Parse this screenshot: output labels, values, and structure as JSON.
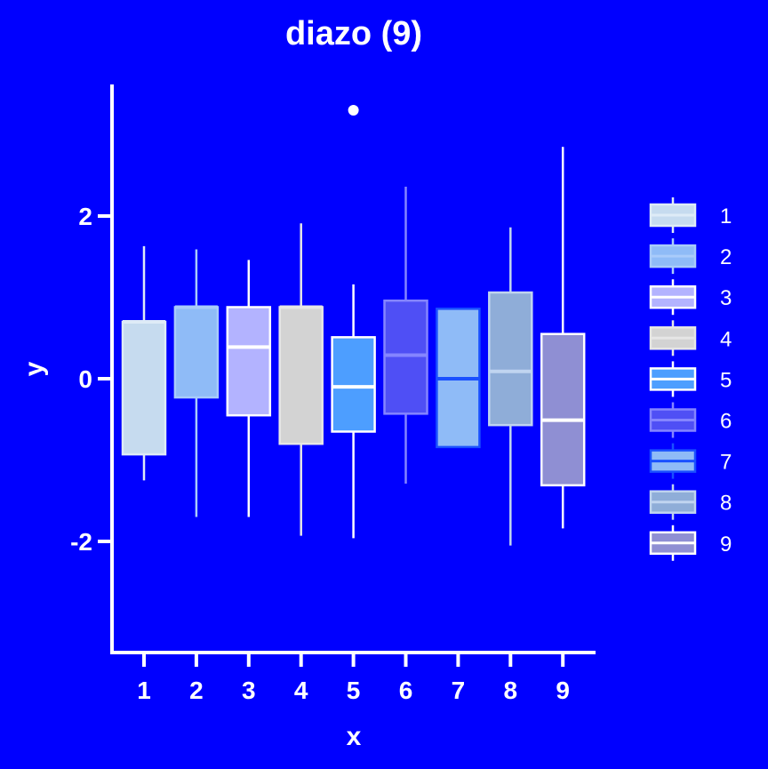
{
  "chart_data": {
    "type": "box",
    "title": "diazo (9)",
    "xlabel": "x",
    "ylabel": "y",
    "ylim": [
      -3.35,
      3.6
    ],
    "yticks": [
      -2,
      0,
      2
    ],
    "ytick_labels": [
      "-2",
      "0",
      "2"
    ],
    "categories": [
      "1",
      "2",
      "3",
      "4",
      "5",
      "6",
      "7",
      "8",
      "9"
    ],
    "legend_position": "right",
    "legend_labels": [
      "1",
      "2",
      "3",
      "4",
      "5",
      "6",
      "7",
      "8",
      "9"
    ],
    "series": [
      {
        "category": "1",
        "whisker_low": -1.25,
        "q1": -0.93,
        "median": 0.7,
        "q3": 0.7,
        "whisker_high": 1.63,
        "fill": "#c6dbef",
        "line": "#deebf7",
        "outliers": []
      },
      {
        "category": "2",
        "whisker_low": -1.7,
        "q1": -0.23,
        "median": 0.88,
        "q3": 0.88,
        "whisker_high": 1.59,
        "fill": "#8fbbf7",
        "line": "#a9cbfa",
        "outliers": []
      },
      {
        "category": "3",
        "whisker_low": -1.7,
        "q1": -0.45,
        "median": 0.39,
        "q3": 0.88,
        "whisker_high": 1.46,
        "fill": "#b3b3ff",
        "line": "#ffffff",
        "outliers": []
      },
      {
        "category": "4",
        "whisker_low": -1.93,
        "q1": -0.8,
        "median": 0.88,
        "q3": 0.88,
        "whisker_high": 1.91,
        "fill": "#d3d3d3",
        "line": "#e6e6e6",
        "outliers": []
      },
      {
        "category": "5",
        "whisker_low": -1.96,
        "q1": -0.65,
        "median": -0.1,
        "q3": 0.51,
        "whisker_high": 1.16,
        "fill": "#4d9eff",
        "line": "#ffffff",
        "outliers": [
          3.3
        ]
      },
      {
        "category": "6",
        "whisker_low": -1.29,
        "q1": -0.43,
        "median": 0.29,
        "q3": 0.96,
        "whisker_high": 2.36,
        "fill": "#4f4ff5",
        "line": "#8585ff",
        "outliers": []
      },
      {
        "category": "7",
        "whisker_low": -0.84,
        "q1": -0.84,
        "median": 0.0,
        "q3": 0.86,
        "whisker_high": 0.86,
        "fill": "#8fbbf7",
        "line": "#1a50ff",
        "outliers": []
      },
      {
        "category": "8",
        "whisker_low": -2.05,
        "q1": -0.57,
        "median": 0.09,
        "q3": 1.06,
        "whisker_high": 1.86,
        "fill": "#8fadd8",
        "line": "#c0d4f0",
        "outliers": []
      },
      {
        "category": "9",
        "whisker_low": -1.84,
        "q1": -1.31,
        "median": -0.51,
        "q3": 0.55,
        "whisker_high": 2.85,
        "fill": "#8f8fd3",
        "line": "#ffffff",
        "outliers": []
      }
    ]
  }
}
